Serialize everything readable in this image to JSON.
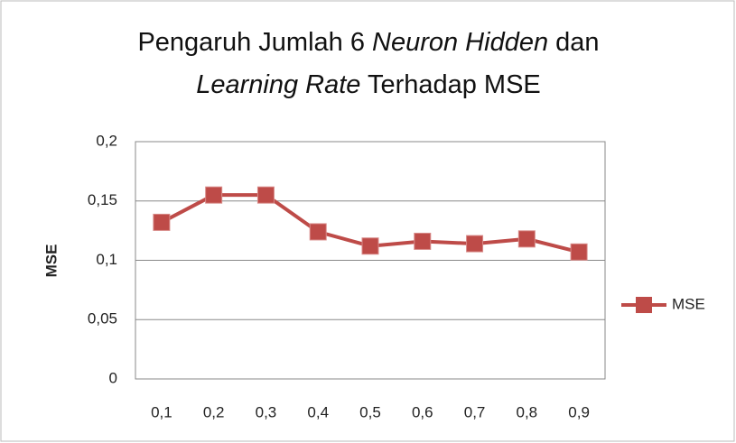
{
  "chart_data": {
    "type": "line",
    "title": [
      "Pengaruh Jumlah 6 Neuron Hidden dan",
      "Learning Rate Terhadap MSE"
    ],
    "title_italic": [
      "Neuron Hidden",
      "Learning Rate"
    ],
    "ylabel": "MSE",
    "categories": [
      "0,1",
      "0,2",
      "0,3",
      "0,4",
      "0,5",
      "0,6",
      "0,7",
      "0,8",
      "0,9"
    ],
    "series": [
      {
        "name": "MSE",
        "color": "#be4b48",
        "values": [
          0.132,
          0.155,
          0.155,
          0.124,
          0.112,
          0.116,
          0.114,
          0.118,
          0.107
        ]
      }
    ],
    "ylim": [
      0,
      0.2
    ],
    "yticks": [
      {
        "value": 0,
        "label": "0"
      },
      {
        "value": 0.05,
        "label": "0,05"
      },
      {
        "value": 0.1,
        "label": "0,1"
      },
      {
        "value": 0.15,
        "label": "0,15"
      },
      {
        "value": 0.2,
        "label": "0,2"
      }
    ],
    "grid": true,
    "legend": "right"
  }
}
